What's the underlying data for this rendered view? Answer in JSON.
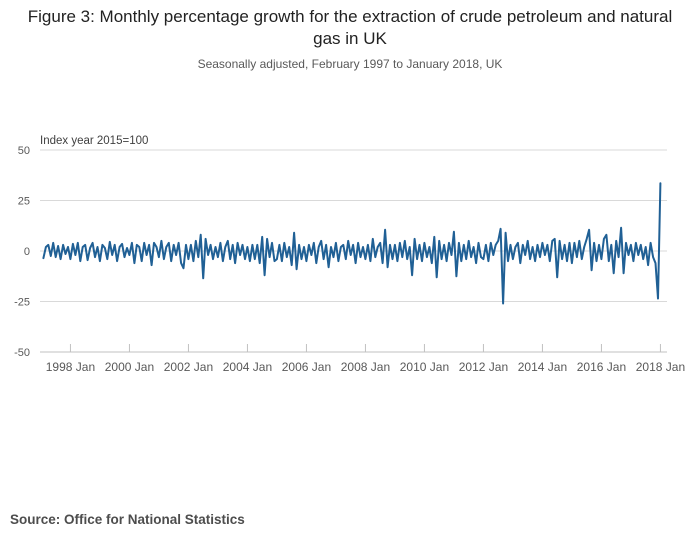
{
  "footer": {
    "source": "Source: Office for National Statistics"
  },
  "colors": {
    "line": "#206095",
    "grid": "#d9d9d9",
    "axis": "#c0c0c0",
    "tick_label": "#595959",
    "title": "#222222",
    "subtitle": "#595959",
    "source": "#4d4d4d"
  },
  "chart_data": {
    "type": "line",
    "title": "Figure 3: Monthly percentage growth for the extraction of crude petroleum and natural gas in UK",
    "subtitle": "Seasonally adjusted, February 1997 to January 2018, UK",
    "unit_label": "Index year 2015=100",
    "xlabel": "",
    "ylabel": "",
    "ylim": [
      -50,
      50
    ],
    "y_ticks": [
      50,
      25,
      0,
      -25,
      -50
    ],
    "x_tick_labels": [
      "1998 Jan",
      "2000 Jan",
      "2002 Jan",
      "2004 Jan",
      "2006 Jan",
      "2008 Jan",
      "2010 Jan",
      "2012 Jan",
      "2014 Jan",
      "2016 Jan",
      "2018 Jan"
    ],
    "grid": true,
    "legend": false,
    "x_start": "1997 Feb",
    "x_end": "2018 Jan",
    "series": [
      {
        "name": "Monthly percentage growth, extraction of crude petroleum and natural gas",
        "start_month": "1997 Feb",
        "frequency": "monthly",
        "values": [
          -3.5,
          2,
          3,
          -2.5,
          4,
          -3,
          2.5,
          -4,
          3,
          -1.5,
          2,
          -4,
          3.5,
          -2,
          4,
          -5,
          2,
          3,
          -4.5,
          1.5,
          4,
          -3,
          2,
          -5,
          3,
          1.5,
          -4,
          4.5,
          -2,
          3,
          -5,
          2,
          3.5,
          -3,
          1.5,
          -2,
          4,
          -6,
          3,
          2,
          -5,
          4,
          -2,
          3,
          -7,
          4,
          2,
          -3,
          5,
          -4,
          2,
          4,
          -5,
          3,
          -2,
          4,
          -6,
          -8.5,
          3,
          -4,
          3,
          -5,
          5,
          -3,
          8,
          -13.5,
          6,
          -2,
          3,
          -4,
          2,
          -3,
          4,
          -5,
          2,
          5,
          -4,
          3,
          -6,
          4,
          -2,
          3,
          -4,
          2,
          -5,
          3,
          -4,
          3,
          -6,
          7,
          -12,
          6,
          -3,
          4,
          -5,
          -4,
          3,
          -5,
          4,
          -3,
          2,
          -7,
          9,
          -9,
          3,
          -4,
          2,
          -5,
          3,
          -2,
          4,
          -6,
          2,
          5,
          -4,
          3,
          -8,
          2,
          -3,
          4,
          -5,
          2,
          3,
          -4,
          5,
          -2,
          3,
          -6,
          4,
          -3,
          2,
          -4,
          3,
          -5,
          6,
          -3,
          2,
          4,
          -6,
          10.5,
          -8,
          3,
          -4,
          3,
          -5,
          4,
          -3,
          5,
          -4,
          2,
          -12,
          6,
          -4,
          3,
          -5,
          4,
          -3,
          2,
          -6,
          7,
          -13,
          5,
          -4,
          3,
          -5,
          4,
          -2,
          9.5,
          -12.5,
          4,
          -5,
          3,
          -4,
          5,
          -3,
          2,
          -6,
          4,
          -3,
          -4,
          3,
          -5,
          4,
          -2,
          3,
          5,
          11,
          -26,
          9,
          -5,
          3,
          -4,
          2,
          4,
          -6,
          3,
          -2,
          5,
          -4,
          2,
          -5,
          3,
          -3,
          4,
          -2,
          3,
          -5,
          5,
          6,
          -13,
          5,
          -4,
          3,
          -5,
          4,
          -6,
          4,
          -3,
          5,
          -4,
          2,
          6,
          10.5,
          -9.5,
          4,
          -5,
          3,
          -4,
          6,
          8,
          -5,
          3,
          -11,
          5,
          -3,
          11.5,
          -11,
          4,
          -2,
          3,
          -5,
          4,
          -2,
          3,
          -4,
          2,
          -7,
          4,
          -3,
          -6,
          -23.5,
          33.5
        ]
      }
    ]
  }
}
